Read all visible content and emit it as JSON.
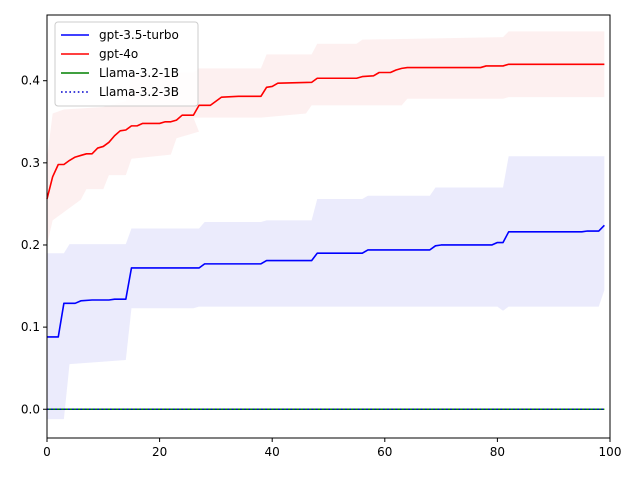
{
  "colors": {
    "gpt35": "#0000ff",
    "gpt4o": "#ff0000",
    "llama1b": "#008000",
    "llama3b": "#0000cd",
    "gpt35_band": "#e9e9fc",
    "gpt4o_band": "#fdeeee"
  },
  "chart_data": {
    "type": "line",
    "title": "",
    "xlabel": "",
    "ylabel": "",
    "xlim": [
      0,
      100
    ],
    "ylim": [
      -0.035,
      0.48
    ],
    "xticks": [
      0,
      20,
      40,
      60,
      80,
      100
    ],
    "yticks": [
      0.0,
      0.1,
      0.2,
      0.3,
      0.4
    ],
    "x_tick_labels": [
      "0",
      "20",
      "40",
      "60",
      "80",
      "100"
    ],
    "y_tick_labels": [
      "0.0",
      "0.1",
      "0.2",
      "0.3",
      "0.4"
    ],
    "grid": false,
    "legend_position": "top-left",
    "series": [
      {
        "name": "gpt-3.5-turbo",
        "color_key": "gpt35",
        "style": "solid",
        "points": [
          [
            0,
            0.088
          ],
          [
            2,
            0.088
          ],
          [
            3,
            0.129
          ],
          [
            5,
            0.129
          ],
          [
            6,
            0.132
          ],
          [
            8,
            0.133
          ],
          [
            11,
            0.133
          ],
          [
            12,
            0.134
          ],
          [
            14,
            0.134
          ],
          [
            15,
            0.172
          ],
          [
            27,
            0.172
          ],
          [
            28,
            0.177
          ],
          [
            38,
            0.177
          ],
          [
            39,
            0.181
          ],
          [
            47,
            0.181
          ],
          [
            48,
            0.19
          ],
          [
            56,
            0.19
          ],
          [
            57,
            0.194
          ],
          [
            68,
            0.194
          ],
          [
            69,
            0.199
          ],
          [
            70,
            0.2
          ],
          [
            79,
            0.2
          ],
          [
            80,
            0.203
          ],
          [
            81,
            0.203
          ],
          [
            82,
            0.216
          ],
          [
            95,
            0.216
          ],
          [
            96,
            0.217
          ],
          [
            98,
            0.217
          ],
          [
            99,
            0.224
          ]
        ],
        "band_upper": [
          [
            0,
            0.19
          ],
          [
            3,
            0.19
          ],
          [
            4,
            0.201
          ],
          [
            14,
            0.201
          ],
          [
            15,
            0.22
          ],
          [
            27,
            0.22
          ],
          [
            28,
            0.228
          ],
          [
            38,
            0.228
          ],
          [
            39,
            0.23
          ],
          [
            47,
            0.23
          ],
          [
            48,
            0.256
          ],
          [
            56,
            0.256
          ],
          [
            57,
            0.26
          ],
          [
            68,
            0.26
          ],
          [
            69,
            0.27
          ],
          [
            81,
            0.27
          ],
          [
            82,
            0.308
          ],
          [
            99,
            0.308
          ]
        ],
        "band_lower": [
          [
            99,
            0.145
          ],
          [
            98,
            0.125
          ],
          [
            82,
            0.125
          ],
          [
            81,
            0.12
          ],
          [
            80,
            0.125
          ],
          [
            27,
            0.125
          ],
          [
            26,
            0.123
          ],
          [
            15,
            0.123
          ],
          [
            14,
            0.06
          ],
          [
            4,
            0.055
          ],
          [
            3,
            -0.012
          ],
          [
            0,
            -0.012
          ]
        ]
      },
      {
        "name": "gpt-4o",
        "color_key": "gpt4o",
        "style": "solid",
        "points": [
          [
            0,
            0.256
          ],
          [
            1,
            0.283
          ],
          [
            2,
            0.298
          ],
          [
            3,
            0.298
          ],
          [
            4,
            0.303
          ],
          [
            5,
            0.307
          ],
          [
            6,
            0.309
          ],
          [
            7,
            0.311
          ],
          [
            8,
            0.311
          ],
          [
            9,
            0.318
          ],
          [
            10,
            0.32
          ],
          [
            11,
            0.325
          ],
          [
            12,
            0.333
          ],
          [
            13,
            0.339
          ],
          [
            14,
            0.34
          ],
          [
            15,
            0.345
          ],
          [
            16,
            0.345
          ],
          [
            17,
            0.348
          ],
          [
            18,
            0.348
          ],
          [
            20,
            0.348
          ],
          [
            21,
            0.35
          ],
          [
            22,
            0.35
          ],
          [
            23,
            0.352
          ],
          [
            24,
            0.358
          ],
          [
            26,
            0.358
          ],
          [
            27,
            0.37
          ],
          [
            29,
            0.37
          ],
          [
            30,
            0.375
          ],
          [
            31,
            0.38
          ],
          [
            34,
            0.381
          ],
          [
            38,
            0.381
          ],
          [
            39,
            0.392
          ],
          [
            40,
            0.393
          ],
          [
            41,
            0.397
          ],
          [
            47,
            0.398
          ],
          [
            48,
            0.403
          ],
          [
            55,
            0.403
          ],
          [
            56,
            0.405
          ],
          [
            58,
            0.406
          ],
          [
            59,
            0.41
          ],
          [
            61,
            0.41
          ],
          [
            62,
            0.413
          ],
          [
            63,
            0.415
          ],
          [
            64,
            0.416
          ],
          [
            77,
            0.416
          ],
          [
            78,
            0.418
          ],
          [
            81,
            0.418
          ],
          [
            82,
            0.42
          ],
          [
            99,
            0.42
          ]
        ],
        "band_upper": [
          [
            0,
            0.305
          ],
          [
            1,
            0.36
          ],
          [
            3,
            0.365
          ],
          [
            10,
            0.368
          ],
          [
            14,
            0.375
          ],
          [
            15,
            0.405
          ],
          [
            16,
            0.405
          ],
          [
            17,
            0.41
          ],
          [
            26,
            0.41
          ],
          [
            27,
            0.415
          ],
          [
            38,
            0.415
          ],
          [
            39,
            0.432
          ],
          [
            47,
            0.432
          ],
          [
            48,
            0.445
          ],
          [
            55,
            0.445
          ],
          [
            56,
            0.45
          ],
          [
            81,
            0.453
          ],
          [
            82,
            0.46
          ],
          [
            99,
            0.46
          ]
        ],
        "band_lower": [
          [
            99,
            0.38
          ],
          [
            82,
            0.38
          ],
          [
            81,
            0.378
          ],
          [
            64,
            0.378
          ],
          [
            63,
            0.37
          ],
          [
            47,
            0.37
          ],
          [
            46,
            0.36
          ],
          [
            38,
            0.355
          ],
          [
            26,
            0.355
          ],
          [
            27,
            0.338
          ],
          [
            23,
            0.33
          ],
          [
            22,
            0.31
          ],
          [
            15,
            0.305
          ],
          [
            14,
            0.285
          ],
          [
            11,
            0.285
          ],
          [
            10,
            0.268
          ],
          [
            7,
            0.268
          ],
          [
            6,
            0.255
          ],
          [
            1,
            0.23
          ],
          [
            0,
            0.2
          ]
        ]
      },
      {
        "name": "Llama-3.2-1B",
        "color_key": "llama1b",
        "style": "solid",
        "points": [
          [
            0,
            0.0
          ],
          [
            99,
            0.0
          ]
        ]
      },
      {
        "name": "Llama-3.2-3B",
        "color_key": "llama3b",
        "style": "dotted",
        "points": [
          [
            0,
            0.0
          ],
          [
            99,
            0.0
          ]
        ]
      }
    ]
  }
}
